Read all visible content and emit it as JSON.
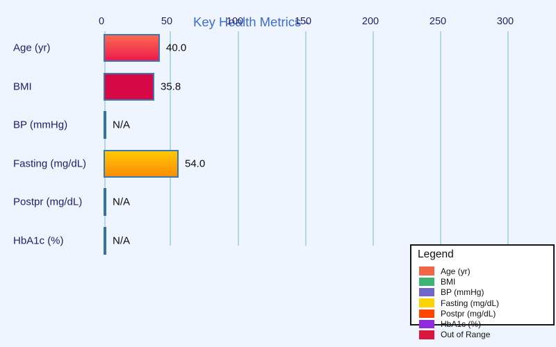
{
  "background_color": "#eff5fe",
  "title": {
    "text": "Key Health Metrics -",
    "color": "#3d6cd3"
  },
  "axis": {
    "tick_labels": [
      "0",
      "50",
      "100",
      "150",
      "200",
      "250",
      "300"
    ],
    "tick_color": "#22226b",
    "gridline_color": "#b2d8e6"
  },
  "chart_data": {
    "type": "bar",
    "orientation": "horizontal",
    "title": "Key Health Metrics -",
    "categories": [
      "Age (yr)",
      "BMI",
      "BP (mmHg)",
      "Fasting (mg/dL)",
      "Postpr (mg/dL)",
      "HbA1c (%)"
    ],
    "values": [
      40.0,
      35.8,
      null,
      54.0,
      null,
      null
    ],
    "value_labels": [
      "40.0",
      "35.8",
      "N/A",
      "54.0",
      "N/A",
      "N/A"
    ],
    "bar_styles": [
      {
        "type": "gradient",
        "from": "#fa6a4d",
        "to": "#ee1a4e"
      },
      {
        "type": "solid",
        "color": "#d60845"
      },
      {
        "type": "zero",
        "color": "#36719f"
      },
      {
        "type": "gradient",
        "from": "#ffc805",
        "to": "#fb8e04"
      },
      {
        "type": "zero",
        "color": "#36719f"
      },
      {
        "type": "zero",
        "color": "#36719f"
      }
    ],
    "bar_border_color": "#3a78b4",
    "x_ticks": [
      0,
      50,
      100,
      150,
      200,
      250,
      300
    ],
    "xlim": [
      0,
      335
    ],
    "grid": true,
    "legend_position": "bottom-right"
  },
  "legend": {
    "title": "Legend",
    "entries": [
      {
        "label": "Age (yr)",
        "color": "#f2664a"
      },
      {
        "label": "BMI",
        "color": "#3eb374"
      },
      {
        "label": "BP (mmHg)",
        "color": "#7366cb"
      },
      {
        "label": "Fasting (mg/dL)",
        "color": "#fdd304"
      },
      {
        "label": "Postpr (mg/dL)",
        "color": "#fe4502"
      },
      {
        "label": "HbA1c (%)",
        "color": "#8c2be0"
      },
      {
        "label": "Out of Range",
        "color": "#da1540"
      }
    ]
  }
}
